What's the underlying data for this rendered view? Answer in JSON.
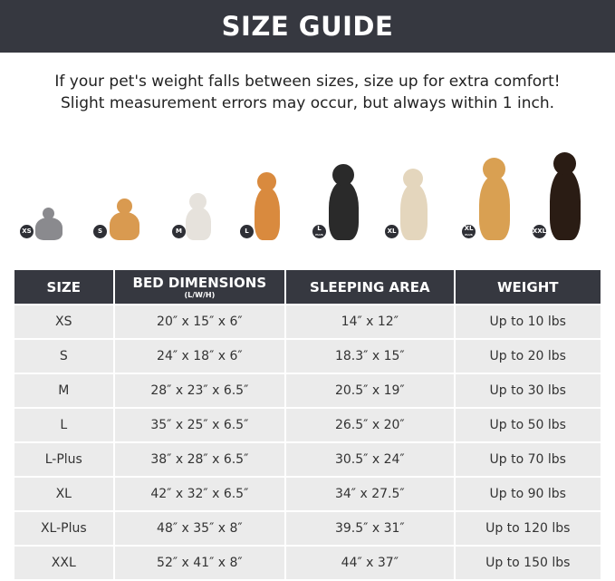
{
  "title": "SIZE GUIDE",
  "note": {
    "line1": "If your pet's weight falls between sizes, size up for extra comfort!",
    "line2": "Slight measurement errors may occur, but always within 1 inch."
  },
  "pets": [
    {
      "badge": "XS",
      "sub": "",
      "color": "#8a8a8e"
    },
    {
      "badge": "S",
      "sub": "",
      "color": "#d99a50"
    },
    {
      "badge": "M",
      "sub": "",
      "color": "#e6e2dc"
    },
    {
      "badge": "L",
      "sub": "",
      "color": "#d98a3e"
    },
    {
      "badge": "L",
      "sub": "PLUS",
      "color": "#2a2a2a"
    },
    {
      "badge": "XL",
      "sub": "",
      "color": "#e4d6bd"
    },
    {
      "badge": "XL",
      "sub": "PLUS",
      "color": "#d9a052"
    },
    {
      "badge": "XXL",
      "sub": "",
      "color": "#2a1c14"
    }
  ],
  "table": {
    "headers": [
      {
        "label": "SIZE",
        "sub": ""
      },
      {
        "label": "BED DIMENSIONS",
        "sub": "(L/W/H)"
      },
      {
        "label": "SLEEPING AREA",
        "sub": ""
      },
      {
        "label": "WEIGHT",
        "sub": ""
      }
    ],
    "rows": [
      [
        "XS",
        "20″ x 15″ x 6″",
        "14″ x 12″",
        "Up to 10 lbs"
      ],
      [
        "S",
        "24″ x 18″ x 6″",
        "18.3″ x 15″",
        "Up to 20 lbs"
      ],
      [
        "M",
        "28″ x 23″ x 6.5″",
        "20.5″ x 19″",
        "Up to 30 lbs"
      ],
      [
        "L",
        "35″ x 25″ x 6.5″",
        "26.5″ x 20″",
        "Up to 50 lbs"
      ],
      [
        "L-Plus",
        "38″ x 28″ x 6.5″",
        "30.5″ x 24″",
        "Up to 70 lbs"
      ],
      [
        "XL",
        "42″ x 32″ x 6.5″",
        "34″ x 27.5″",
        "Up to 90 lbs"
      ],
      [
        "XL-Plus",
        "48″ x 35″ x 8″",
        "39.5″ x 31″",
        "Up to 120 lbs"
      ],
      [
        "XXL",
        "52″ x 41″ x 8″",
        "44″ x 37″",
        "Up to 150 lbs"
      ]
    ]
  }
}
